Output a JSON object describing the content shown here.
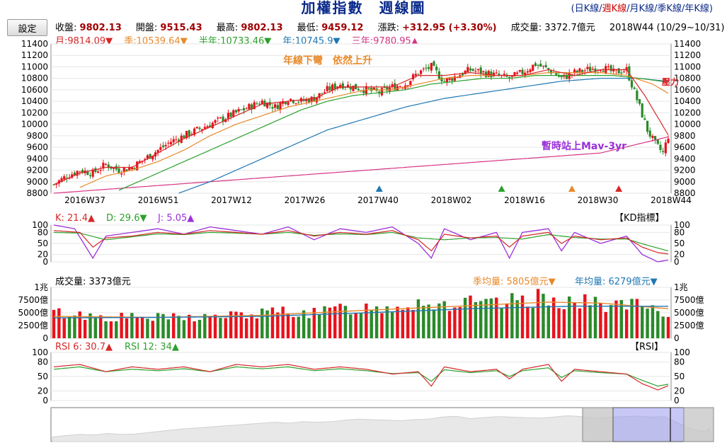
{
  "header": {
    "title_main": "加權指數",
    "title_sub": "週線圖",
    "periods": [
      "日K線",
      "週K線",
      "月K線",
      "季K線",
      "年K線"
    ],
    "selected_period": "週K線",
    "settings_label": "設定"
  },
  "info": {
    "close_label": "收盤:",
    "close": "9802.13",
    "open_label": "開盤:",
    "open": "9515.43",
    "high_label": "最高:",
    "high": "9802.13",
    "low_label": "最低:",
    "low": "9459.12",
    "change_label": "漲跌:",
    "change": "+312.95 (+3.30%)",
    "volume_label": "成交量:",
    "volume": "3372.7億元",
    "week_label": "2018W44 (10/29~10/31)"
  },
  "ma_legend": [
    {
      "text": "月:9814.09▼",
      "color": "#d62728"
    },
    {
      "text": "季:10539.64▼",
      "color": "#e8892b"
    },
    {
      "text": "半年:10733.46▼",
      "color": "#2ca02c"
    },
    {
      "text": "年:10745.9▼",
      "color": "#1f77b4"
    },
    {
      "text": "三年:9780.95▲",
      "color": "#d63384"
    }
  ],
  "annotations": {
    "a1": "年線下彎　依然上升",
    "a2": "暫時站上Mav-3yr",
    "a3": "壓力"
  },
  "kd": {
    "legend": [
      {
        "text": "K: 21.4▲",
        "color": "#d62728"
      },
      {
        "text": "D: 29.6▼",
        "color": "#2ca02c"
      },
      {
        "text": "J: 5.05▲",
        "color": "#9b30d9"
      }
    ],
    "tag": "【KD指標】"
  },
  "volume_panel": {
    "label": "成交量: 3373億元",
    "legend": [
      {
        "text": "季均量: 5805億元▼",
        "color": "#e8892b"
      },
      {
        "text": "年均量: 6279億元▼",
        "color": "#1f77b4"
      }
    ]
  },
  "rsi": {
    "legend": [
      {
        "text": "RSI 6: 30.7▲",
        "color": "#d62728"
      },
      {
        "text": "RSI 12: 34▲",
        "color": "#2ca02c"
      }
    ],
    "tag": "【RSI】"
  },
  "colors": {
    "up": "#e8121b",
    "down": "#2a8a2a",
    "ma_month": "#d62728",
    "ma_quarter": "#e8892b",
    "ma_half": "#2ca02c",
    "ma_year": "#1f77b4",
    "ma_3yr": "#d63384"
  },
  "chart_data": {
    "type": "candlestick",
    "x_ticks": [
      "2016W37",
      "2016W51",
      "2017W12",
      "2017W26",
      "2017W40",
      "2018W02",
      "2018W16",
      "2018W30",
      "2018W44"
    ],
    "price": {
      "ylim": [
        8800,
        11400
      ],
      "y_ticks": [
        8800,
        9000,
        9200,
        9400,
        9600,
        9800,
        10000,
        10200,
        10400,
        10600,
        10800,
        11000,
        11200,
        11400
      ],
      "close_series": [
        [
          0,
          8950
        ],
        [
          5,
          9100
        ],
        [
          10,
          9200
        ],
        [
          15,
          9150
        ],
        [
          20,
          9300
        ],
        [
          25,
          9200
        ],
        [
          30,
          9250
        ],
        [
          35,
          9400
        ],
        [
          40,
          9550
        ],
        [
          45,
          9700
        ],
        [
          50,
          9800
        ],
        [
          55,
          9900
        ],
        [
          60,
          10000
        ],
        [
          65,
          10100
        ],
        [
          70,
          10200
        ],
        [
          75,
          10300
        ],
        [
          80,
          10400
        ],
        [
          85,
          10300
        ],
        [
          90,
          10450
        ],
        [
          95,
          10400
        ],
        [
          100,
          10450
        ],
        [
          105,
          10600
        ],
        [
          110,
          10700
        ],
        [
          115,
          10650
        ],
        [
          120,
          10600
        ],
        [
          125,
          10550
        ],
        [
          130,
          10650
        ],
        [
          135,
          10700
        ],
        [
          140,
          10900
        ],
        [
          145,
          11000
        ],
        [
          150,
          10750
        ],
        [
          155,
          10850
        ],
        [
          160,
          10950
        ],
        [
          165,
          10900
        ],
        [
          170,
          10850
        ],
        [
          175,
          10800
        ],
        [
          180,
          10900
        ],
        [
          185,
          11050
        ],
        [
          190,
          10950
        ],
        [
          195,
          10800
        ],
        [
          200,
          10900
        ],
        [
          205,
          10950
        ],
        [
          210,
          11000
        ],
        [
          215,
          10900
        ],
        [
          220,
          10950
        ],
        [
          225,
          10300
        ],
        [
          228,
          9900
        ],
        [
          231,
          9650
        ],
        [
          234,
          9500
        ],
        [
          236,
          9800
        ]
      ],
      "ma_month": [
        [
          0,
          8950
        ],
        [
          10,
          9150
        ],
        [
          20,
          9250
        ],
        [
          30,
          9250
        ],
        [
          40,
          9500
        ],
        [
          50,
          9750
        ],
        [
          60,
          9950
        ],
        [
          70,
          10150
        ],
        [
          80,
          10350
        ],
        [
          90,
          10400
        ],
        [
          100,
          10450
        ],
        [
          110,
          10650
        ],
        [
          120,
          10650
        ],
        [
          130,
          10650
        ],
        [
          140,
          10850
        ],
        [
          150,
          10850
        ],
        [
          160,
          10900
        ],
        [
          170,
          10850
        ],
        [
          180,
          10850
        ],
        [
          190,
          10950
        ],
        [
          200,
          10850
        ],
        [
          210,
          10950
        ],
        [
          220,
          10950
        ],
        [
          227,
          10500
        ],
        [
          236,
          9814.09
        ]
      ],
      "ma_quarter": [
        [
          10,
          8900
        ],
        [
          20,
          9100
        ],
        [
          30,
          9200
        ],
        [
          40,
          9350
        ],
        [
          50,
          9550
        ],
        [
          60,
          9800
        ],
        [
          70,
          10000
        ],
        [
          80,
          10150
        ],
        [
          90,
          10300
        ],
        [
          100,
          10400
        ],
        [
          110,
          10500
        ],
        [
          120,
          10600
        ],
        [
          130,
          10600
        ],
        [
          140,
          10700
        ],
        [
          150,
          10800
        ],
        [
          160,
          10850
        ],
        [
          170,
          10850
        ],
        [
          180,
          10850
        ],
        [
          190,
          10900
        ],
        [
          200,
          10900
        ],
        [
          210,
          10900
        ],
        [
          220,
          10850
        ],
        [
          230,
          10700
        ],
        [
          236,
          10539.64
        ]
      ],
      "ma_half": [
        [
          25,
          8850
        ],
        [
          35,
          9050
        ],
        [
          45,
          9250
        ],
        [
          55,
          9450
        ],
        [
          65,
          9650
        ],
        [
          75,
          9850
        ],
        [
          85,
          10050
        ],
        [
          95,
          10250
        ],
        [
          105,
          10400
        ],
        [
          115,
          10500
        ],
        [
          125,
          10550
        ],
        [
          135,
          10600
        ],
        [
          145,
          10700
        ],
        [
          155,
          10750
        ],
        [
          165,
          10800
        ],
        [
          175,
          10800
        ],
        [
          185,
          10850
        ],
        [
          195,
          10850
        ],
        [
          205,
          10850
        ],
        [
          215,
          10850
        ],
        [
          225,
          10800
        ],
        [
          236,
          10733.46
        ]
      ],
      "ma_year": [
        [
          48,
          8800
        ],
        [
          60,
          9000
        ],
        [
          75,
          9300
        ],
        [
          90,
          9600
        ],
        [
          105,
          9900
        ],
        [
          120,
          10100
        ],
        [
          135,
          10300
        ],
        [
          150,
          10450
        ],
        [
          165,
          10550
        ],
        [
          180,
          10650
        ],
        [
          195,
          10750
        ],
        [
          210,
          10800
        ],
        [
          225,
          10800
        ],
        [
          236,
          10745.9
        ]
      ],
      "ma_3yr": [
        [
          0,
          8800
        ],
        [
          30,
          8900
        ],
        [
          60,
          9000
        ],
        [
          90,
          9100
        ],
        [
          120,
          9200
        ],
        [
          150,
          9300
        ],
        [
          180,
          9400
        ],
        [
          210,
          9500
        ],
        [
          236,
          9780.95
        ]
      ],
      "markers": [
        {
          "x": 125,
          "color": "#1f77b4"
        },
        {
          "x": 172,
          "color": "#2ca02c"
        },
        {
          "x": 199,
          "color": "#e8892b"
        },
        {
          "x": 217,
          "color": "#d62728"
        }
      ]
    },
    "kd": {
      "ylim": [
        0,
        100
      ],
      "y_ticks": [
        0,
        20,
        50,
        80,
        100
      ],
      "k_series": [
        [
          0,
          85
        ],
        [
          10,
          80
        ],
        [
          15,
          40
        ],
        [
          20,
          65
        ],
        [
          30,
          70
        ],
        [
          40,
          80
        ],
        [
          50,
          75
        ],
        [
          60,
          85
        ],
        [
          70,
          80
        ],
        [
          80,
          75
        ],
        [
          90,
          85
        ],
        [
          100,
          70
        ],
        [
          110,
          80
        ],
        [
          120,
          75
        ],
        [
          130,
          85
        ],
        [
          140,
          60
        ],
        [
          145,
          30
        ],
        [
          150,
          75
        ],
        [
          160,
          65
        ],
        [
          170,
          70
        ],
        [
          175,
          40
        ],
        [
          180,
          70
        ],
        [
          190,
          80
        ],
        [
          195,
          50
        ],
        [
          200,
          70
        ],
        [
          210,
          60
        ],
        [
          220,
          65
        ],
        [
          226,
          40
        ],
        [
          232,
          25
        ],
        [
          236,
          21.4
        ]
      ],
      "d_series": [
        [
          0,
          80
        ],
        [
          10,
          78
        ],
        [
          20,
          60
        ],
        [
          30,
          68
        ],
        [
          40,
          76
        ],
        [
          50,
          74
        ],
        [
          60,
          80
        ],
        [
          70,
          78
        ],
        [
          80,
          75
        ],
        [
          90,
          80
        ],
        [
          100,
          72
        ],
        [
          110,
          76
        ],
        [
          120,
          74
        ],
        [
          130,
          80
        ],
        [
          140,
          65
        ],
        [
          150,
          60
        ],
        [
          160,
          65
        ],
        [
          170,
          66
        ],
        [
          180,
          62
        ],
        [
          190,
          74
        ],
        [
          200,
          66
        ],
        [
          210,
          62
        ],
        [
          220,
          62
        ],
        [
          228,
          45
        ],
        [
          236,
          29.6
        ]
      ],
      "j_series": [
        [
          0,
          100
        ],
        [
          8,
          90
        ],
        [
          15,
          10
        ],
        [
          20,
          70
        ],
        [
          30,
          80
        ],
        [
          40,
          90
        ],
        [
          50,
          75
        ],
        [
          60,
          95
        ],
        [
          70,
          85
        ],
        [
          80,
          75
        ],
        [
          90,
          95
        ],
        [
          100,
          60
        ],
        [
          110,
          90
        ],
        [
          120,
          80
        ],
        [
          130,
          95
        ],
        [
          140,
          50
        ],
        [
          145,
          10
        ],
        [
          150,
          90
        ],
        [
          160,
          60
        ],
        [
          170,
          80
        ],
        [
          175,
          10
        ],
        [
          180,
          80
        ],
        [
          190,
          90
        ],
        [
          195,
          30
        ],
        [
          200,
          80
        ],
        [
          210,
          50
        ],
        [
          220,
          70
        ],
        [
          226,
          20
        ],
        [
          232,
          0
        ],
        [
          236,
          5.05
        ]
      ]
    },
    "volume": {
      "ylim": [
        0,
        10000
      ],
      "y_ticks": [
        0,
        2500,
        5000,
        7500,
        10000
      ],
      "y_tick_labels": [
        "0",
        "2500億",
        "5000億",
        "7500億",
        "1兆"
      ],
      "levels": [
        [
          0,
          5000
        ],
        [
          20,
          4200
        ],
        [
          40,
          4000
        ],
        [
          60,
          4200
        ],
        [
          80,
          4800
        ],
        [
          90,
          5500
        ],
        [
          100,
          4800
        ],
        [
          110,
          5800
        ],
        [
          120,
          6000
        ],
        [
          130,
          6200
        ],
        [
          140,
          7200
        ],
        [
          150,
          6600
        ],
        [
          160,
          6800
        ],
        [
          170,
          6500
        ],
        [
          180,
          7500
        ],
        [
          190,
          8000
        ],
        [
          200,
          7000
        ],
        [
          210,
          6800
        ],
        [
          220,
          6500
        ],
        [
          228,
          6000
        ],
        [
          236,
          3373
        ]
      ],
      "quarter_avg": [
        [
          0,
          4300
        ],
        [
          40,
          4100
        ],
        [
          80,
          4500
        ],
        [
          120,
          5500
        ],
        [
          160,
          6400
        ],
        [
          190,
          7100
        ],
        [
          210,
          6900
        ],
        [
          236,
          5805
        ]
      ],
      "year_avg": [
        [
          0,
          4000
        ],
        [
          40,
          4100
        ],
        [
          80,
          4300
        ],
        [
          120,
          5000
        ],
        [
          160,
          5800
        ],
        [
          200,
          6300
        ],
        [
          236,
          6279
        ]
      ]
    },
    "rsi": {
      "ylim": [
        0,
        100
      ],
      "y_ticks": [
        0,
        20,
        50,
        80,
        100
      ],
      "rsi6_series": [
        [
          0,
          70
        ],
        [
          10,
          75
        ],
        [
          20,
          60
        ],
        [
          30,
          70
        ],
        [
          40,
          65
        ],
        [
          50,
          70
        ],
        [
          60,
          60
        ],
        [
          70,
          75
        ],
        [
          80,
          70
        ],
        [
          90,
          75
        ],
        [
          100,
          65
        ],
        [
          110,
          70
        ],
        [
          120,
          65
        ],
        [
          130,
          55
        ],
        [
          140,
          60
        ],
        [
          145,
          30
        ],
        [
          150,
          70
        ],
        [
          160,
          60
        ],
        [
          170,
          65
        ],
        [
          175,
          45
        ],
        [
          180,
          65
        ],
        [
          190,
          75
        ],
        [
          195,
          40
        ],
        [
          200,
          65
        ],
        [
          210,
          60
        ],
        [
          220,
          55
        ],
        [
          226,
          35
        ],
        [
          232,
          22
        ],
        [
          236,
          30.7
        ]
      ],
      "rsi12_series": [
        [
          0,
          65
        ],
        [
          10,
          70
        ],
        [
          20,
          60
        ],
        [
          30,
          65
        ],
        [
          40,
          62
        ],
        [
          50,
          66
        ],
        [
          60,
          60
        ],
        [
          70,
          70
        ],
        [
          80,
          66
        ],
        [
          90,
          70
        ],
        [
          100,
          62
        ],
        [
          110,
          66
        ],
        [
          120,
          62
        ],
        [
          130,
          56
        ],
        [
          140,
          58
        ],
        [
          145,
          40
        ],
        [
          150,
          64
        ],
        [
          160,
          58
        ],
        [
          170,
          62
        ],
        [
          175,
          50
        ],
        [
          180,
          62
        ],
        [
          190,
          68
        ],
        [
          195,
          48
        ],
        [
          200,
          62
        ],
        [
          210,
          58
        ],
        [
          220,
          55
        ],
        [
          226,
          42
        ],
        [
          232,
          30
        ],
        [
          236,
          34
        ]
      ]
    }
  }
}
